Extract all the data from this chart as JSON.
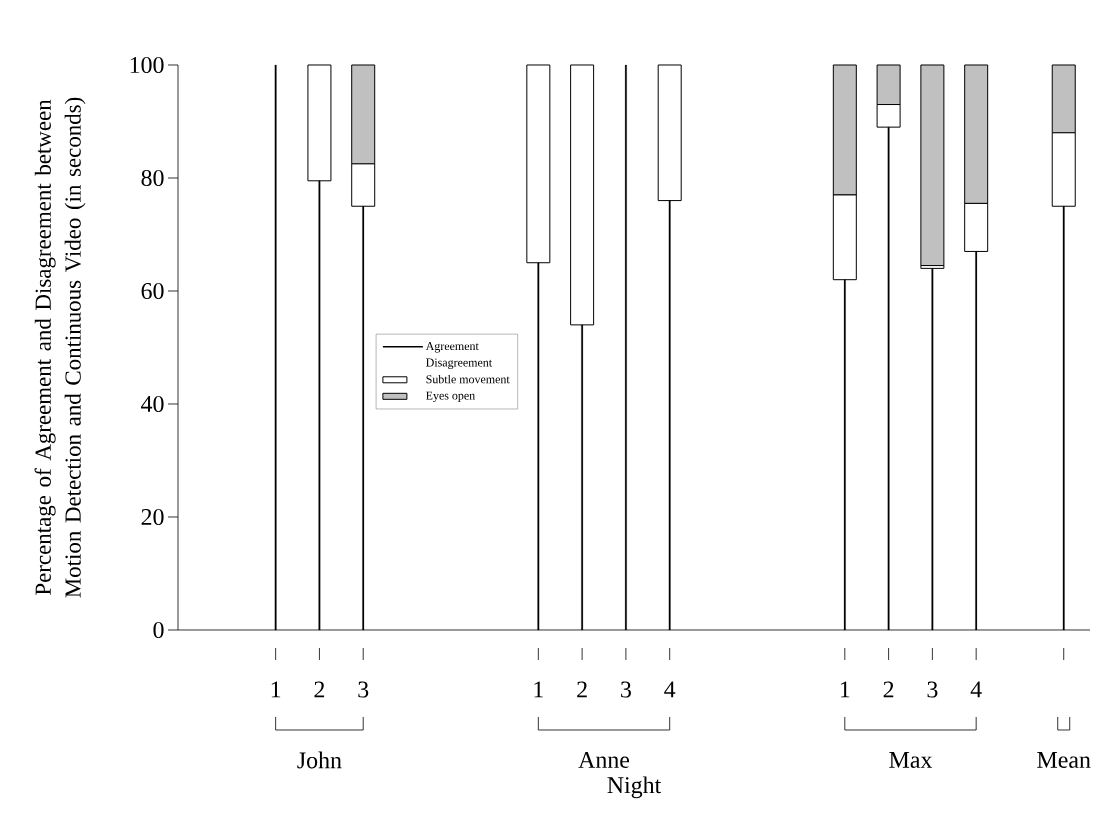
{
  "chart_data": {
    "type": "bar",
    "stacked": true,
    "xlabel": "Night",
    "ylabel": "Percentage of Agreement and Disagreement between Motion Detection and Continuous Video (in seconds)",
    "categories": [
      "1",
      "2",
      "3",
      null,
      null,
      null,
      "1",
      "2",
      "3",
      "4",
      null,
      null,
      null,
      "1",
      "2",
      "3",
      "4",
      null,
      null
    ],
    "series": [
      {
        "name": "Agreement",
        "color": "#000000",
        "values": [
          100,
          79.5,
          75,
          null,
          null,
          null,
          65,
          54,
          100,
          76,
          null,
          null,
          null,
          62,
          89,
          64,
          67,
          null,
          75
        ]
      },
      {
        "name": "Subtle movement",
        "color": "#ffffff",
        "values": [
          0,
          20.5,
          7.5,
          null,
          null,
          null,
          35,
          46,
          0,
          24,
          null,
          null,
          null,
          15,
          4,
          0.5,
          8.5,
          null,
          13
        ]
      },
      {
        "name": "Eyes open",
        "color": "#c0c0c0",
        "values": [
          0,
          0,
          17.5,
          null,
          null,
          null,
          0,
          0,
          0,
          0,
          null,
          null,
          null,
          23,
          7,
          35.5,
          24.5,
          null,
          12
        ]
      }
    ],
    "legend_title": "Disagreement",
    "legend": "left",
    "annotations": [
      "John",
      "Anne",
      "Max",
      "Mean"
    ],
    "ylim": [
      0,
      100
    ],
    "yticks": [
      0,
      20,
      40,
      60,
      80,
      100
    ],
    "grid": false
  }
}
